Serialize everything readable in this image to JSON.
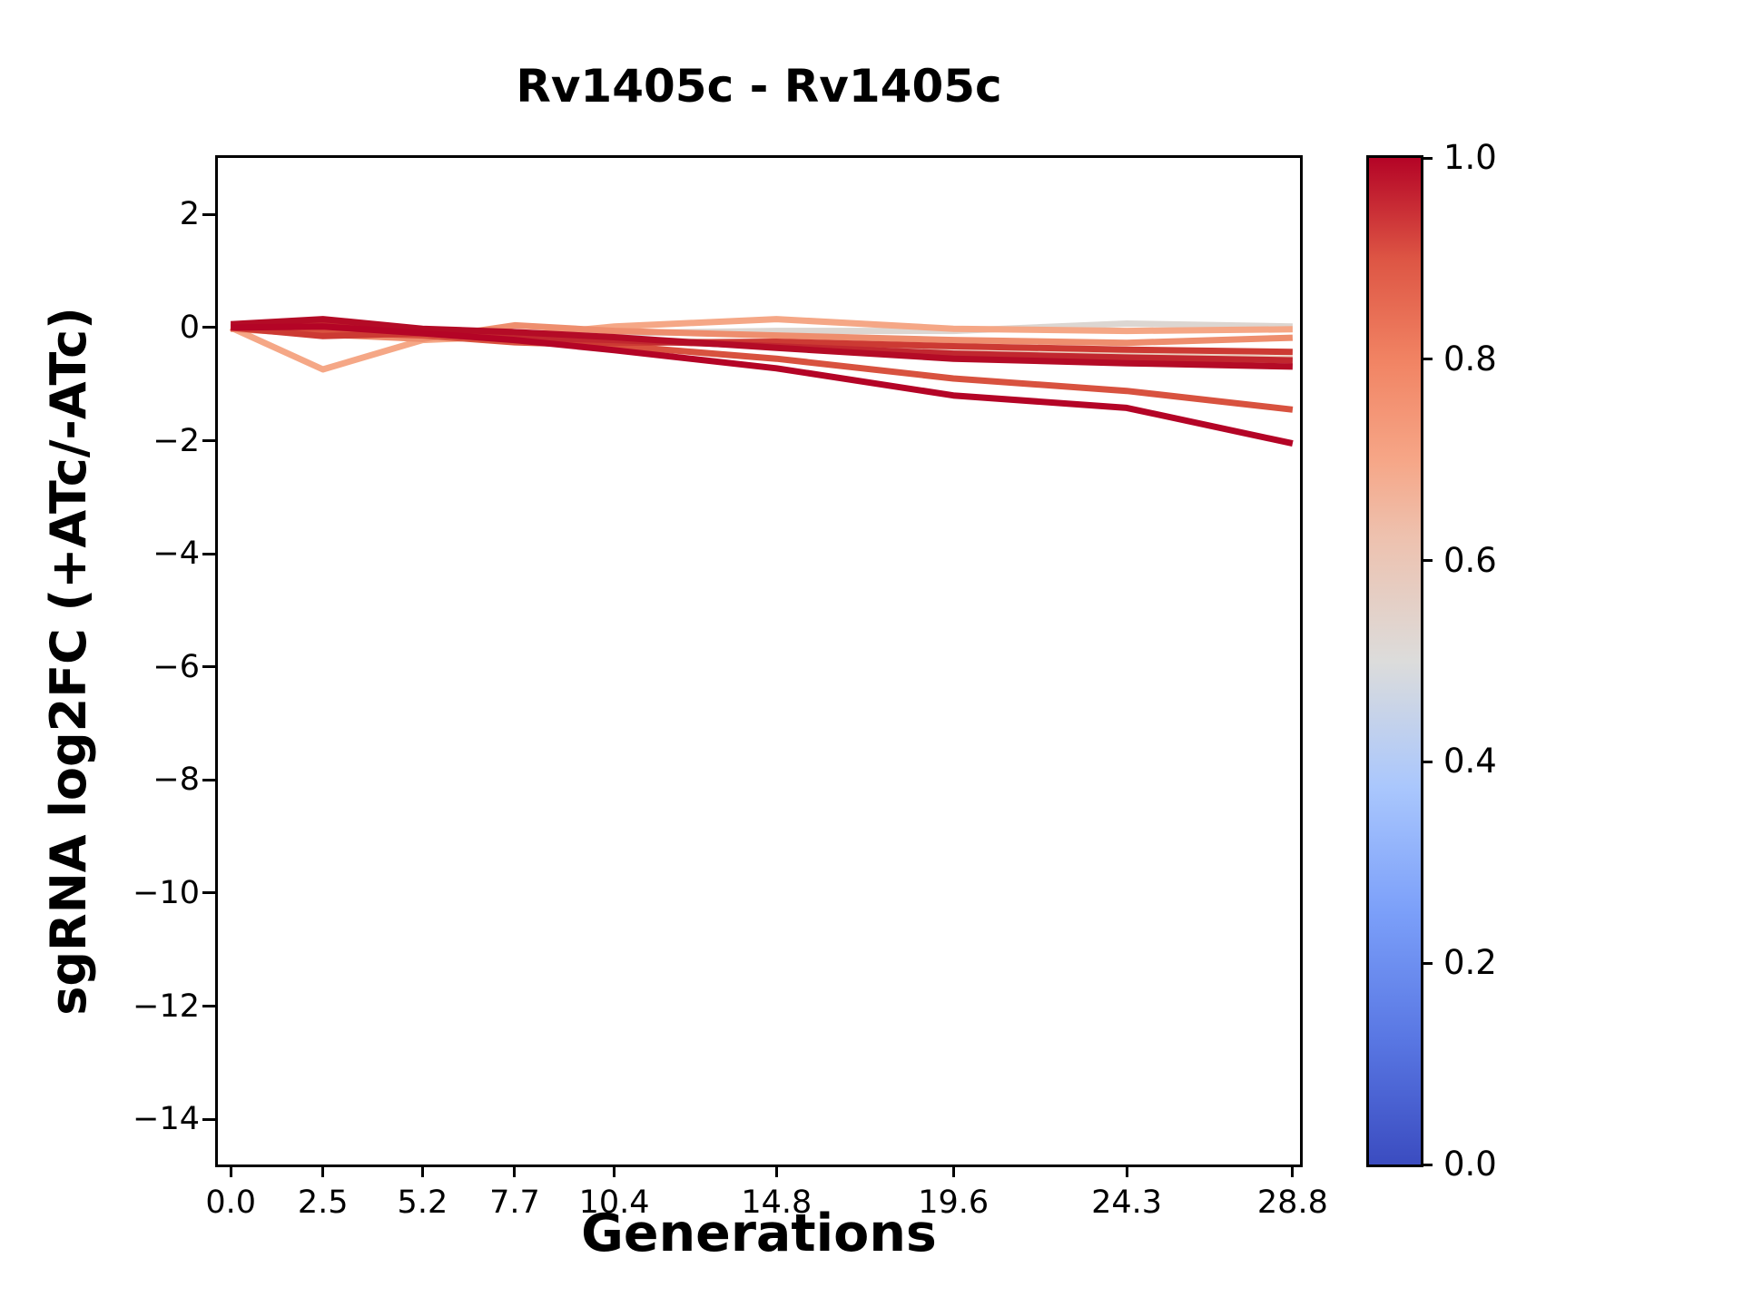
{
  "chart_data": {
    "type": "line",
    "title": "Rv1405c - Rv1405c",
    "xlabel": "Generations",
    "ylabel": "sgRNA log2FC (+ATc/-ATc)",
    "x": [
      0.0,
      2.5,
      5.2,
      7.7,
      10.4,
      14.8,
      19.6,
      24.3,
      28.8
    ],
    "xticklabels": [
      "0.0",
      "2.5",
      "5.2",
      "7.7",
      "10.4",
      "14.8",
      "19.6",
      "24.3",
      "28.8"
    ],
    "yticks": [
      2,
      0,
      -2,
      -4,
      -6,
      -8,
      -10,
      -12,
      -14
    ],
    "yticklabels": [
      "2",
      "0",
      "−2",
      "−4",
      "−6",
      "−8",
      "−10",
      "−12",
      "−14"
    ],
    "xlim": [
      -0.35,
      29.0
    ],
    "ylim": [
      -14.8,
      3.0
    ],
    "grid": false,
    "legend_position": "none",
    "line_width": 7,
    "series": [
      {
        "name": "line_1",
        "color_value": 0.58,
        "color": "#e9cdbb",
        "values": [
          0.0,
          -0.1,
          -0.15,
          -0.12,
          -0.2,
          -0.3,
          -0.45,
          -0.5,
          -0.55
        ]
      },
      {
        "name": "line_2",
        "color_value": 0.53,
        "color": "#dcd6d1",
        "values": [
          0.0,
          -0.05,
          -0.1,
          -0.15,
          -0.1,
          -0.06,
          -0.06,
          0.07,
          0.02
        ]
      },
      {
        "name": "line_3",
        "color_value": 0.7,
        "color": "#f5a786",
        "values": [
          0.0,
          -0.74,
          -0.22,
          -0.15,
          0.02,
          0.15,
          -0.02,
          -0.06,
          -0.03
        ]
      },
      {
        "name": "line_4",
        "color_value": 0.76,
        "color": "#ee8e6e",
        "values": [
          -0.02,
          -0.12,
          -0.2,
          0.04,
          -0.06,
          -0.14,
          -0.22,
          -0.27,
          -0.18
        ]
      },
      {
        "name": "line_5",
        "color_value": 0.88,
        "color": "#d8523f",
        "values": [
          0.0,
          -0.08,
          -0.14,
          -0.26,
          -0.32,
          -0.55,
          -0.9,
          -1.12,
          -1.45
        ]
      },
      {
        "name": "line_6",
        "color_value": 0.93,
        "color": "#cc3a33",
        "values": [
          0.0,
          -0.15,
          -0.1,
          -0.22,
          -0.27,
          -0.25,
          -0.33,
          -0.39,
          -0.43
        ]
      },
      {
        "name": "line_7",
        "color_value": 0.96,
        "color": "#c1272f",
        "values": [
          0.02,
          0.06,
          -0.06,
          -0.18,
          -0.22,
          -0.33,
          -0.46,
          -0.53,
          -0.58
        ]
      },
      {
        "name": "line_8",
        "color_value": 1.0,
        "color": "#b40b26",
        "values": [
          0.06,
          0.15,
          -0.02,
          -0.08,
          -0.17,
          -0.36,
          -0.55,
          -0.63,
          -0.69
        ]
      },
      {
        "name": "line_9",
        "color_value": 1.0,
        "color": "#b40426",
        "values": [
          0.0,
          0.02,
          -0.1,
          -0.22,
          -0.4,
          -0.72,
          -1.2,
          -1.42,
          -2.05
        ]
      }
    ],
    "colorbar": {
      "cmap": "coolwarm",
      "range": [
        0.0,
        1.0
      ],
      "ticks": [
        "0.0",
        "0.2",
        "0.4",
        "0.6",
        "0.8",
        "1.0"
      ],
      "gradient_stops": [
        "#3b4cc0 0%",
        "#5977e3 12.5%",
        "#7b9ff9 25%",
        "#aac7fd 37.5%",
        "#dcdcdb 50%",
        "#eec1ae 62.5%",
        "#f6a687 70%",
        "#f18363 80%",
        "#dd5544 90%",
        "#b40426 100%"
      ]
    }
  }
}
